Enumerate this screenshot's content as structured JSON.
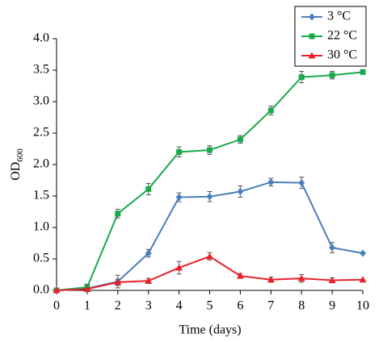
{
  "chart_data": {
    "type": "line",
    "x_label": "Time (days)",
    "y_label": "OD",
    "y_label_subscript": "600",
    "x": [
      0,
      1,
      2,
      3,
      4,
      5,
      6,
      7,
      8,
      9,
      10
    ],
    "xlim": [
      0,
      10
    ],
    "xticks": [
      0,
      1,
      2,
      3,
      4,
      5,
      6,
      7,
      8,
      9,
      10
    ],
    "ylim": [
      0,
      4
    ],
    "yticks": [
      {
        "value": 0,
        "label": "0.0"
      },
      {
        "value": 0.5,
        "label": "0.5"
      },
      {
        "value": 1,
        "label": "1.0"
      },
      {
        "value": 1.5,
        "label": "1.5"
      },
      {
        "value": 2,
        "label": "2.0"
      },
      {
        "value": 2.5,
        "label": "2.5"
      },
      {
        "value": 3,
        "label": "3.0"
      },
      {
        "value": 3.5,
        "label": "3.5"
      },
      {
        "value": 4,
        "label": "4.0"
      }
    ],
    "legend": "top-right",
    "series": [
      {
        "name": "3 °C",
        "color": "#4a7ebb",
        "marker": "diamond",
        "values": [
          0,
          0.03,
          0.14,
          0.59,
          1.48,
          1.49,
          1.57,
          1.72,
          1.71,
          0.68,
          0.59
        ],
        "errors": [
          0,
          0.02,
          0.1,
          0.06,
          0.07,
          0.08,
          0.09,
          0.06,
          0.09,
          0.08,
          0
        ]
      },
      {
        "name": "22 °C",
        "color": "#1aa84a",
        "marker": "square",
        "values": [
          0,
          0.05,
          1.22,
          1.61,
          2.2,
          2.23,
          2.4,
          2.86,
          3.39,
          3.42,
          3.47
        ],
        "errors": [
          0,
          0.05,
          0.07,
          0.09,
          0.08,
          0.07,
          0.06,
          0.07,
          0.09,
          0.06,
          0
        ]
      },
      {
        "name": "30 °C",
        "color": "#e8202a",
        "marker": "triangle",
        "values": [
          0,
          0.02,
          0.13,
          0.15,
          0.36,
          0.54,
          0.23,
          0.17,
          0.19,
          0.16,
          0.17
        ],
        "errors": [
          0,
          0.01,
          0.05,
          0.04,
          0.1,
          0.06,
          0.04,
          0.04,
          0.06,
          0.04,
          0
        ]
      }
    ]
  }
}
